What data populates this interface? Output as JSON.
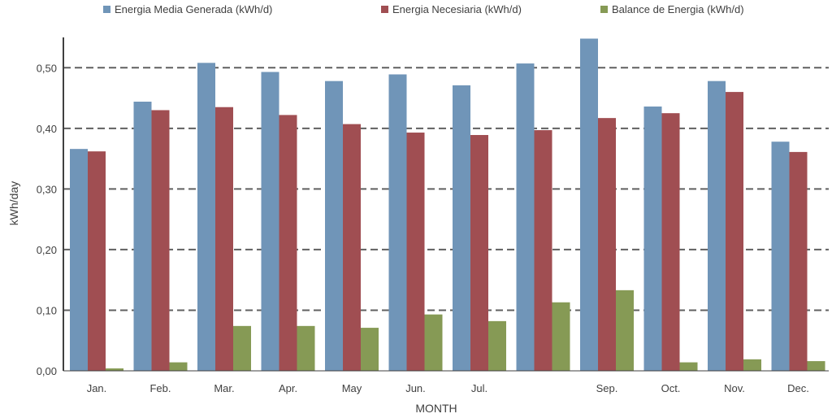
{
  "chart_data": {
    "type": "bar",
    "categories": [
      "Jan.",
      "Feb.",
      "Mar.",
      "Apr.",
      "May",
      "Jun.",
      "Jul.",
      "",
      "Sep.",
      "Oct.",
      "Nov.",
      "Dec."
    ],
    "series": [
      {
        "name": "Energia Media Generada (kWh/d)",
        "color": "#7095b8",
        "values": [
          0.366,
          0.444,
          0.508,
          0.493,
          0.478,
          0.489,
          0.471,
          0.507,
          0.548,
          0.436,
          0.478,
          0.378
        ]
      },
      {
        "name": "Energia Necesiaria (kWh/d)",
        "color": "#a04e52",
        "values": [
          0.362,
          0.43,
          0.435,
          0.422,
          0.407,
          0.393,
          0.389,
          0.397,
          0.417,
          0.425,
          0.46,
          0.361
        ]
      },
      {
        "name": "Balance de Energia (kWh/d)",
        "color": "#869a55",
        "values": [
          0.004,
          0.014,
          0.074,
          0.074,
          0.071,
          0.093,
          0.082,
          0.113,
          0.133,
          0.014,
          0.019,
          0.016
        ]
      }
    ],
    "xlabel": "MONTH",
    "ylabel": "kWh/day",
    "ylim": [
      0,
      0.55
    ],
    "yticks": [
      0,
      0.1,
      0.2,
      0.3,
      0.4,
      0.5
    ],
    "ytick_labels": [
      "0,00",
      "0,10",
      "0,20",
      "0,30",
      "0,40",
      "0,50"
    ],
    "grid": true,
    "legend_position": "top"
  }
}
